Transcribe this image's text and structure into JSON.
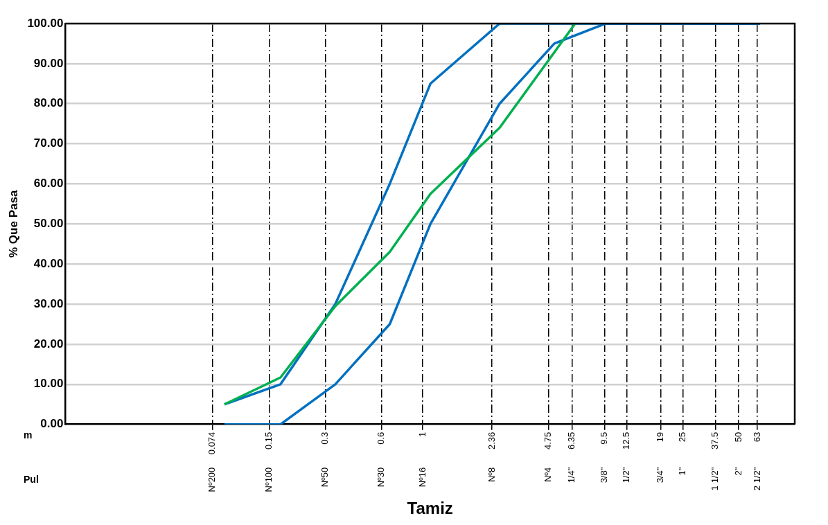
{
  "chart_data": {
    "type": "line",
    "xlabel": "Tamiz",
    "ylabel": "% Que Pasa",
    "annotations": [
      "m",
      "Pul",
      "Nº200",
      "Nº100",
      "Nº50",
      "Nº30",
      "Nº16",
      "Nº8",
      "Nº4",
      "1/4\"",
      "3/8\"",
      "1/2\"",
      "3/4\"",
      "1\"",
      "1 1/2\"",
      "2\"",
      "2 1/2\""
    ],
    "log": "x",
    "grid": true,
    "legend": false,
    "marker": "none",
    "line_style": "solid",
    "xlim": [
      0.012,
      100
    ],
    "ylim": [
      0,
      100
    ],
    "xticks": [
      0.074,
      0.15,
      0.3,
      0.6,
      1,
      2.36,
      4.75,
      6.35,
      9.5,
      12.5,
      19,
      25,
      37.5,
      50,
      63
    ],
    "yticks": [
      {
        "value": 0,
        "label": "0.00"
      },
      {
        "value": 10,
        "label": "10.00"
      },
      {
        "value": 20,
        "label": "20.00"
      },
      {
        "value": 30,
        "label": "30.00"
      },
      {
        "value": 40,
        "label": "40.00"
      },
      {
        "value": 50,
        "label": "50.00"
      },
      {
        "value": 60,
        "label": "60.00"
      },
      {
        "value": 70,
        "label": "70.00"
      },
      {
        "value": 80,
        "label": "80.00"
      },
      {
        "value": 90,
        "label": "90.00"
      },
      {
        "value": 100,
        "label": "100.00"
      }
    ],
    "series": [
      {
        "color": "#00b050",
        "x": [
          0.086,
          0.172,
          0.339,
          0.665,
          1.1,
          2.59,
          6.6
        ],
        "values": [
          5,
          11.7,
          29.5,
          43,
          57.5,
          74,
          100
        ]
      },
      {
        "color": "#0070c0",
        "x": [
          0.086,
          0.172,
          0.339,
          0.665,
          1.1,
          2.59,
          65
        ],
        "values": [
          5,
          10,
          30,
          60,
          85,
          100,
          100
        ]
      },
      {
        "color": "#0070c0",
        "x": [
          0.086,
          0.172,
          0.339,
          0.665,
          1.1,
          2.59,
          5.1,
          9.6,
          65
        ],
        "values": [
          0,
          0,
          10,
          25,
          50,
          80,
          95,
          100,
          100
        ]
      }
    ]
  }
}
